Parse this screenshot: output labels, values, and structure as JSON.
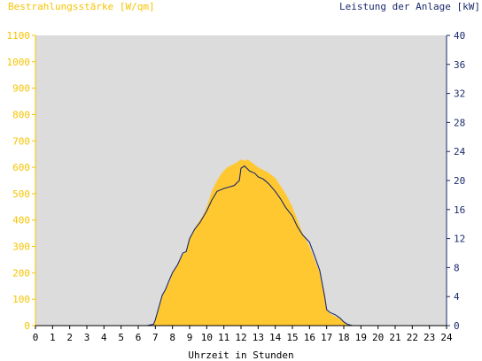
{
  "chart_data": {
    "type": "area",
    "title_left": "Bestrahlungsstärke [W/qm]",
    "title_right": "Leistung der Anlage [kW]",
    "xlabel": "Uhrzeit in Stunden",
    "x_ticks": [
      "0",
      "1",
      "2",
      "3",
      "4",
      "5",
      "6",
      "7",
      "8",
      "9",
      "10",
      "11",
      "12",
      "13",
      "14",
      "15",
      "16",
      "17",
      "18",
      "19",
      "20",
      "21",
      "22",
      "23",
      "24"
    ],
    "xlim": [
      0,
      24
    ],
    "y_left": {
      "ylim": [
        0,
        1100
      ],
      "ticks": [
        "0",
        "100",
        "200",
        "300",
        "400",
        "500",
        "600",
        "700",
        "800",
        "900",
        "1000",
        "1100"
      ]
    },
    "y_right": {
      "ylim": [
        0,
        40
      ],
      "ticks": [
        "0",
        "4",
        "8",
        "12",
        "16",
        "20",
        "24",
        "28",
        "32",
        "36",
        "40"
      ]
    },
    "colors": {
      "irradiance": "#ffc830",
      "power": "#1a2a6c",
      "plot_bg": "#dcdcdc",
      "left_axis": "#f5c400",
      "right_axis": "#1a2a6c"
    },
    "grid": false,
    "series": [
      {
        "axis": "left",
        "x": [
          0,
          6.5,
          6.9,
          7.0,
          7.2,
          7.4,
          7.6,
          7.8,
          8.0,
          8.3,
          8.6,
          8.8,
          9.0,
          9.2,
          9.5,
          9.8,
          10.0,
          10.3,
          10.6,
          10.9,
          11.2,
          11.5,
          11.8,
          12.0,
          12.2,
          12.4,
          12.6,
          12.8,
          13.0,
          13.3,
          13.6,
          14.0,
          14.3,
          14.6,
          15.0,
          15.3,
          15.6,
          16.0,
          16.3,
          16.6,
          16.9,
          17.0,
          17.2,
          17.5,
          17.8,
          18.0,
          18.2,
          18.5,
          24
        ],
        "y": [
          0,
          0,
          5,
          20,
          60,
          110,
          140,
          160,
          200,
          230,
          270,
          280,
          330,
          360,
          390,
          420,
          450,
          510,
          550,
          580,
          600,
          610,
          620,
          630,
          625,
          630,
          620,
          610,
          600,
          590,
          580,
          560,
          530,
          500,
          450,
          400,
          350,
          300,
          250,
          200,
          120,
          60,
          45,
          35,
          25,
          15,
          5,
          0,
          0
        ]
      },
      {
        "axis": "right",
        "x": [
          0,
          6.5,
          6.9,
          7.0,
          7.2,
          7.4,
          7.6,
          7.8,
          8.0,
          8.3,
          8.6,
          8.8,
          9.0,
          9.3,
          9.6,
          10.0,
          10.3,
          10.6,
          11.0,
          11.3,
          11.6,
          11.9,
          12.0,
          12.2,
          12.5,
          12.8,
          13.0,
          13.3,
          13.6,
          14.0,
          14.3,
          14.6,
          15.0,
          15.3,
          15.6,
          16.0,
          16.3,
          16.6,
          16.9,
          17.0,
          17.2,
          17.5,
          17.8,
          18.0,
          18.2,
          18.5,
          24
        ],
        "y": [
          0,
          0,
          0.2,
          0.8,
          2.5,
          4.2,
          5.0,
          6.2,
          7.3,
          8.4,
          10.0,
          10.2,
          12.0,
          13.3,
          14.2,
          15.8,
          17.3,
          18.5,
          18.9,
          19.1,
          19.3,
          20.0,
          21.7,
          22.0,
          21.3,
          21.0,
          20.5,
          20.2,
          19.6,
          18.5,
          17.5,
          16.3,
          15.1,
          13.6,
          12.5,
          11.5,
          9.6,
          7.6,
          3.8,
          2.2,
          1.8,
          1.5,
          1.0,
          0.5,
          0.2,
          0,
          0
        ]
      }
    ]
  }
}
